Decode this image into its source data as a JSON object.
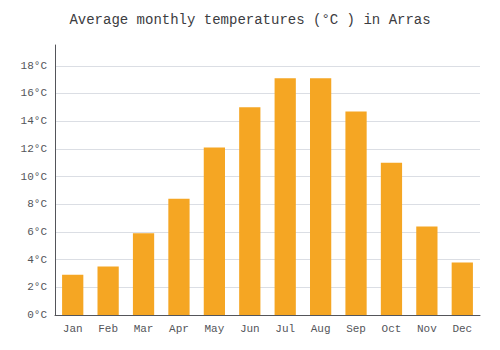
{
  "chart_data": {
    "type": "bar",
    "title": "Average monthly temperatures (°C ) in Arras",
    "categories": [
      "Jan",
      "Feb",
      "Mar",
      "Apr",
      "May",
      "Jun",
      "Jul",
      "Aug",
      "Sep",
      "Oct",
      "Nov",
      "Dec"
    ],
    "values": [
      2.9,
      3.5,
      5.9,
      8.4,
      12.1,
      15.0,
      17.1,
      17.1,
      14.7,
      11.0,
      6.4,
      3.8
    ],
    "color": "#F5A623",
    "ylim": [
      0,
      19.5
    ],
    "yticks": [
      {
        "value": 0,
        "label": "0°C"
      },
      {
        "value": 2,
        "label": "2°C"
      },
      {
        "value": 4,
        "label": "4°C"
      },
      {
        "value": 6,
        "label": "6°C"
      },
      {
        "value": 8,
        "label": "8°C"
      },
      {
        "value": 10,
        "label": "10°C"
      },
      {
        "value": 12,
        "label": "12°C"
      },
      {
        "value": 14,
        "label": "14°C"
      },
      {
        "value": 16,
        "label": "16°C"
      },
      {
        "value": 18,
        "label": "18°C"
      }
    ],
    "grid": true
  }
}
